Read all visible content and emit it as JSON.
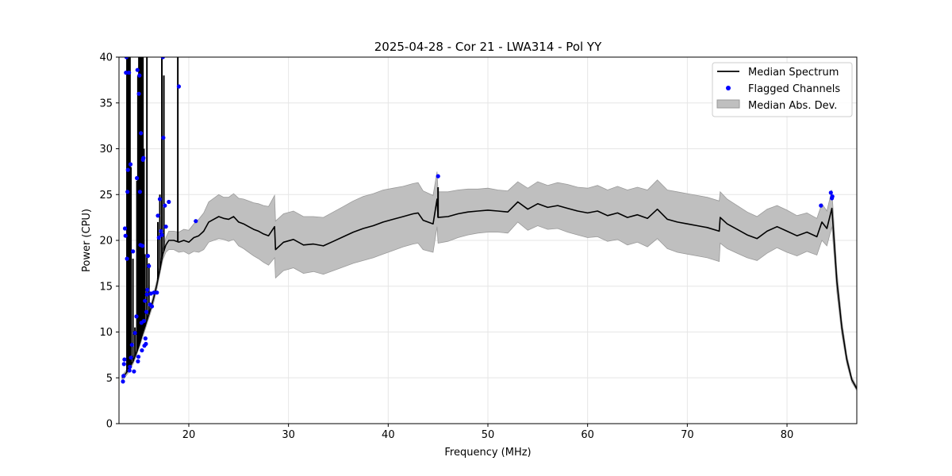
{
  "chart_data": {
    "type": "line",
    "title": "2025-04-28 - Cor 21 - LWA314 - Pol YY",
    "xlabel": "Frequency (MHz)",
    "ylabel": "Power (CPU)",
    "xlim": [
      13,
      87
    ],
    "ylim": [
      0,
      40
    ],
    "xticks": [
      20,
      30,
      40,
      50,
      60,
      70,
      80
    ],
    "yticks": [
      0,
      5,
      10,
      15,
      20,
      25,
      30,
      35,
      40
    ],
    "grid": true,
    "legend_position": "top-right",
    "colors": {
      "median": "#000000",
      "flagged": "#0000ff",
      "mad_fill": "#bfbfbf",
      "mad_edge": "#9a9a9a",
      "grid": "#e6e6e6"
    },
    "series": [
      {
        "name": "Median Spectrum",
        "kind": "line",
        "x": [
          13.3,
          13.5,
          13.7,
          13.9,
          14.1,
          14.4,
          14.7,
          15.0,
          15.3,
          15.6,
          15.9,
          16.2,
          16.5,
          16.8,
          17.1,
          17.4,
          17.7,
          18.0,
          18.5,
          19.0,
          19.5,
          20.0,
          20.5,
          21.0,
          21.5,
          22.0,
          22.5,
          23.0,
          23.5,
          24.0,
          24.5,
          25.0,
          25.5,
          26.0,
          26.5,
          27.0,
          27.5,
          28.0,
          28.6,
          28.7,
          29.5,
          30.5,
          31.5,
          32.5,
          33.5,
          34.5,
          35.5,
          36.5,
          37.5,
          38.5,
          39.5,
          40.5,
          41.5,
          42.5,
          43.0,
          43.5,
          44.5,
          44.9,
          45.0,
          46.0,
          47.0,
          48.0,
          49.0,
          50.0,
          51.0,
          52.0,
          53.0,
          54.0,
          55.0,
          56.0,
          57.0,
          58.0,
          59.0,
          60.0,
          61.0,
          62.0,
          63.0,
          64.0,
          65.0,
          66.0,
          67.0,
          68.0,
          69.0,
          70.0,
          71.0,
          72.0,
          73.2,
          73.3,
          74.0,
          75.0,
          76.0,
          77.0,
          78.0,
          79.0,
          80.0,
          81.0,
          82.0,
          83.0,
          83.5,
          84.0,
          84.5,
          85.0,
          85.5,
          86.0,
          86.5,
          87.0
        ],
        "values": [
          5.0,
          5.2,
          5.5,
          5.8,
          6.2,
          6.8,
          7.6,
          8.5,
          9.6,
          10.6,
          11.6,
          12.6,
          13.8,
          15.2,
          16.8,
          18.5,
          19.5,
          20.0,
          20.0,
          19.8,
          20.0,
          19.8,
          20.3,
          20.5,
          21.0,
          22.0,
          22.3,
          22.6,
          22.4,
          22.3,
          22.6,
          22.0,
          21.8,
          21.5,
          21.2,
          21.0,
          20.7,
          20.5,
          21.5,
          19.0,
          19.8,
          20.1,
          19.5,
          19.6,
          19.4,
          19.9,
          20.4,
          20.9,
          21.3,
          21.6,
          22.0,
          22.3,
          22.6,
          22.9,
          23.0,
          22.2,
          21.8,
          24.5,
          22.5,
          22.6,
          22.9,
          23.1,
          23.2,
          23.3,
          23.2,
          23.1,
          24.2,
          23.4,
          24.0,
          23.6,
          23.8,
          23.5,
          23.2,
          23.0,
          23.2,
          22.7,
          23.0,
          22.5,
          22.8,
          22.4,
          23.4,
          22.3,
          22.0,
          21.8,
          21.6,
          21.4,
          21.0,
          22.5,
          21.8,
          21.2,
          20.6,
          20.2,
          21.0,
          21.5,
          21.0,
          20.5,
          20.9,
          20.4,
          22.0,
          21.3,
          23.5,
          15.5,
          10.5,
          7.0,
          4.8,
          3.8
        ]
      },
      {
        "name": "Median Abs. Dev.",
        "kind": "band",
        "half_width": [
          0.3,
          0.3,
          0.3,
          0.3,
          0.3,
          0.3,
          0.3,
          0.3,
          0.4,
          0.4,
          0.4,
          0.4,
          0.5,
          0.5,
          0.5,
          0.6,
          0.8,
          1.0,
          1.0,
          1.1,
          1.2,
          1.3,
          1.5,
          1.8,
          2.0,
          2.2,
          2.3,
          2.4,
          2.3,
          2.4,
          2.5,
          2.6,
          2.7,
          2.8,
          2.9,
          3.0,
          3.1,
          3.2,
          3.4,
          3.1,
          3.1,
          3.1,
          3.1,
          3.0,
          3.1,
          3.2,
          3.3,
          3.4,
          3.5,
          3.5,
          3.5,
          3.4,
          3.3,
          3.3,
          3.3,
          3.2,
          3.1,
          3.0,
          2.8,
          2.7,
          2.6,
          2.5,
          2.4,
          2.4,
          2.3,
          2.3,
          2.2,
          2.3,
          2.4,
          2.4,
          2.5,
          2.6,
          2.6,
          2.7,
          2.8,
          2.8,
          2.9,
          3.0,
          3.0,
          3.1,
          3.2,
          3.2,
          3.3,
          3.3,
          3.3,
          3.3,
          3.3,
          2.8,
          2.7,
          2.6,
          2.5,
          2.4,
          2.4,
          2.3,
          2.3,
          2.2,
          2.1,
          2.0,
          2.0,
          1.9,
          2.0,
          1.2,
          0.8,
          0.5,
          0.3,
          0.2
        ]
      },
      {
        "name": "Flagged Channels",
        "kind": "scatter",
        "points": [
          [
            13.4,
            4.6
          ],
          [
            13.45,
            5.2
          ],
          [
            13.5,
            6.5
          ],
          [
            13.55,
            7.0
          ],
          [
            13.6,
            21.3
          ],
          [
            13.65,
            20.5
          ],
          [
            13.7,
            38.3
          ],
          [
            13.75,
            40.0
          ],
          [
            13.8,
            18.0
          ],
          [
            13.85,
            25.3
          ],
          [
            13.9,
            27.7
          ],
          [
            14.0,
            38.3
          ],
          [
            14.05,
            5.8
          ],
          [
            14.1,
            6.2
          ],
          [
            14.15,
            28.3
          ],
          [
            14.2,
            7.2
          ],
          [
            14.3,
            8.6
          ],
          [
            14.4,
            18.8
          ],
          [
            14.5,
            5.7
          ],
          [
            14.6,
            9.9
          ],
          [
            14.75,
            11.7
          ],
          [
            14.8,
            26.8
          ],
          [
            14.85,
            38.6
          ],
          [
            14.9,
            6.8
          ],
          [
            14.95,
            7.3
          ],
          [
            15.0,
            36.0
          ],
          [
            15.05,
            38.0
          ],
          [
            15.1,
            25.3
          ],
          [
            15.15,
            19.5
          ],
          [
            15.2,
            31.7
          ],
          [
            15.25,
            11.0
          ],
          [
            15.3,
            8.0
          ],
          [
            15.35,
            19.4
          ],
          [
            15.4,
            28.8
          ],
          [
            15.45,
            29.0
          ],
          [
            15.5,
            11.2
          ],
          [
            15.55,
            8.5
          ],
          [
            15.6,
            13.4
          ],
          [
            15.65,
            9.3
          ],
          [
            15.7,
            8.7
          ],
          [
            15.75,
            12.2
          ],
          [
            15.8,
            14.1
          ],
          [
            15.85,
            14.6
          ],
          [
            15.9,
            18.3
          ],
          [
            16.0,
            17.2
          ],
          [
            16.1,
            13.0
          ],
          [
            16.2,
            14.2
          ],
          [
            16.3,
            12.8
          ],
          [
            16.5,
            14.3
          ],
          [
            16.8,
            14.3
          ],
          [
            16.9,
            22.7
          ],
          [
            17.0,
            20.3
          ],
          [
            17.1,
            24.5
          ],
          [
            17.2,
            21.0
          ],
          [
            17.3,
            20.6
          ],
          [
            17.4,
            40.0
          ],
          [
            17.45,
            31.2
          ],
          [
            17.6,
            23.8
          ],
          [
            17.7,
            21.5
          ],
          [
            18.0,
            24.2
          ],
          [
            19.0,
            36.8
          ],
          [
            20.7,
            22.1
          ],
          [
            45.0,
            27.0
          ],
          [
            83.4,
            23.8
          ],
          [
            84.4,
            25.2
          ],
          [
            84.5,
            24.6
          ],
          [
            84.55,
            24.8
          ]
        ]
      }
    ],
    "spikes": [
      [
        13.8,
        40.0
      ],
      [
        13.9,
        40.0
      ],
      [
        14.0,
        40.0
      ],
      [
        14.1,
        40.0
      ],
      [
        14.2,
        28.0
      ],
      [
        14.4,
        18.0
      ],
      [
        14.6,
        10.5
      ],
      [
        14.8,
        26.5
      ],
      [
        14.9,
        38.0
      ],
      [
        15.0,
        40.0
      ],
      [
        15.1,
        40.0
      ],
      [
        15.2,
        40.0
      ],
      [
        15.3,
        40.0
      ],
      [
        15.4,
        40.0
      ],
      [
        15.5,
        30.0
      ],
      [
        15.6,
        18.5
      ],
      [
        15.8,
        40.0
      ],
      [
        16.0,
        17.5
      ],
      [
        16.9,
        22.0
      ],
      [
        17.1,
        25.0
      ],
      [
        17.3,
        40.0
      ],
      [
        17.5,
        38.0
      ],
      [
        18.9,
        40.0
      ],
      [
        45.0,
        25.8
      ]
    ],
    "legend": {
      "median_label": "Median Spectrum",
      "flagged_label": "Flagged Channels",
      "mad_label": "Median Abs. Dev."
    }
  }
}
